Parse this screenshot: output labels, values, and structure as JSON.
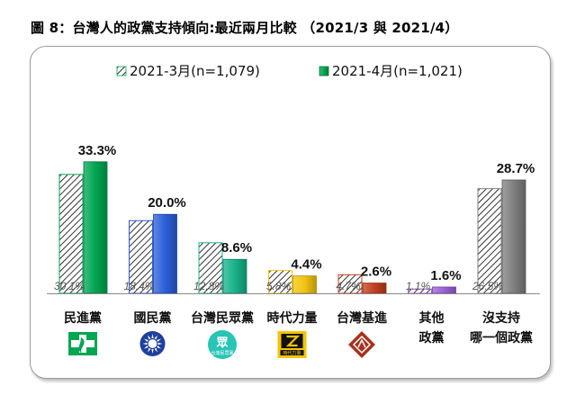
{
  "title": "圖 8：台灣人的政黨支持傾向:最近兩月比較 （2021/3 與 2021/4）",
  "chart_data": {
    "type": "bar",
    "title": "圖 8：台灣人的政黨支持傾向:最近兩月比較 （2021/3 與 2021/4）",
    "categories": [
      [
        "民進黨"
      ],
      [
        "國民黨"
      ],
      [
        "台灣民眾黨"
      ],
      [
        "時代力量"
      ],
      [
        "台灣基進"
      ],
      [
        "其他",
        "政黨"
      ],
      [
        "沒支持",
        "哪一個政黨"
      ]
    ],
    "series": [
      {
        "name": "2021-3月(n=1,079)",
        "values": [
          30.1,
          18.4,
          12.8,
          5.8,
          4.7,
          1.1,
          26.5
        ],
        "labels": [
          "30.1%",
          "18.4%",
          "12.8%",
          "5.8%",
          "4.7%",
          "1.1%",
          "26.5%"
        ]
      },
      {
        "name": "2021-4月(n=1,021)",
        "values": [
          33.3,
          20.0,
          8.6,
          4.4,
          2.6,
          1.6,
          28.7
        ],
        "labels": [
          "33.3%",
          "20.0%",
          "8.6%",
          "4.4%",
          "2.6%",
          "1.6%",
          "28.7%"
        ]
      }
    ],
    "colors": [
      "#00a651",
      "#2b5fd9",
      "#17b38a",
      "#f2c40f",
      "#c1401f",
      "#9a62d6",
      "#7f7f7f"
    ],
    "ylim": [
      0,
      40
    ],
    "grid": false,
    "legend": "top",
    "logos": [
      "民進黨-logo",
      "國民黨-logo",
      "眾",
      "時代力量-logo",
      "台灣基進-logo"
    ],
    "logo_text": {
      "tpp": "台灣民眾黨",
      "npp": "時代力量"
    }
  }
}
